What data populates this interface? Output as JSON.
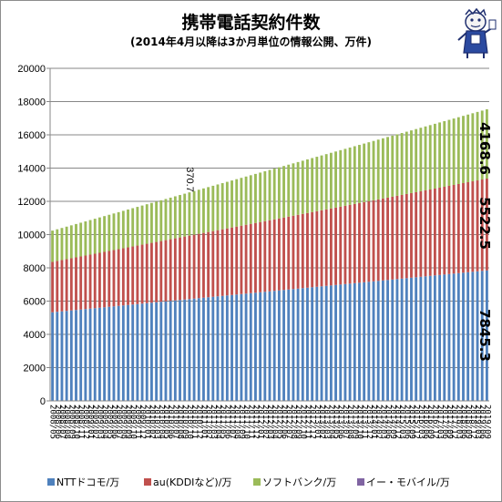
{
  "colors": {
    "docomo": "#4f81bd",
    "au": "#c0504d",
    "softbank": "#9bbb59",
    "emobile": "#8064a2",
    "grid": "#878787",
    "axis": "#878787"
  },
  "chart_data": {
    "type": "bar",
    "stacked": true,
    "title": "携帯電話契約件数",
    "subtitle": "(2014年4月以降は3か月単位の情報公開、万件)",
    "ylim": [
      0,
      20000
    ],
    "yticks": [
      0,
      2000,
      4000,
      6000,
      8000,
      10000,
      12000,
      14000,
      16000,
      18000,
      20000
    ],
    "grid": true,
    "legend_position": "bottom",
    "series": [
      {
        "name": "NTTドコモ/万",
        "color_key": "docomo",
        "start": 5330,
        "end": 7845.3
      },
      {
        "name": "au(KDDIなど)/万",
        "color_key": "au",
        "start": 3030,
        "end": 5522.5
      },
      {
        "name": "ソフトバンク/万",
        "color_key": "softbank",
        "start": 1880,
        "end": 4168.6
      },
      {
        "name": "イー・モバイル/万",
        "color_key": "emobile",
        "start": 130,
        "end": 370.7
      }
    ],
    "monthly_period": {
      "start": "2008-05",
      "end": "2014-03",
      "count": 71
    },
    "quarterly_period": {
      "start": "2014-06",
      "end": "2019-09",
      "count": 22
    },
    "emobile_last": "2014-03",
    "annotations": {
      "docomo_last": "7845.3",
      "au_last": "5522.5",
      "softbank_last": "4168.6",
      "emobile_last": "370.7"
    },
    "x_tick_labels": [
      "2008/05",
      "2008/06",
      "2008/07",
      "2008/08",
      "2008/09",
      "2008/10",
      "2008/11",
      "2008/12",
      "2009/01",
      "2009/02",
      "2009/03",
      "2009/04",
      "2009/05",
      "2009/06",
      "2009/07",
      "2009/08",
      "2009/09",
      "2009/10",
      "2009/11",
      "2009/12",
      "2010/01",
      "2010/02",
      "2010/03",
      "2010/04",
      "2010/05",
      "2010/06",
      "2010/07",
      "2010/08",
      "2010/09",
      "2010/10",
      "2010/11",
      "2010/12",
      "2011/01",
      "2011/02",
      "2011/03",
      "2011/04",
      "2011/05",
      "2011/06",
      "2011/07",
      "2011/08",
      "2011/09",
      "2011/10",
      "2011/11",
      "2011/12",
      "2012/01",
      "2012/02",
      "2012/03",
      "2012/04",
      "2012/05",
      "2012/06",
      "2012/07",
      "2012/08",
      "2012/09",
      "2012/10",
      "2012/11",
      "2012/12",
      "2013/01",
      "2013/02",
      "2013/03",
      "2013/04",
      "2013/05",
      "2013/06",
      "2013/07",
      "2013/08",
      "2013/09",
      "2013/10",
      "2013/11",
      "2013/12",
      "2014/01",
      "2014/02",
      "2014/03",
      "2014/06",
      "2014/09",
      "2014/12",
      "2015/03",
      "2015/06",
      "2015/09",
      "2015/12",
      "2016/03",
      "2016/06",
      "2016/09",
      "2016/12",
      "2017/03",
      "2017/06",
      "2017/09",
      "2017/12",
      "2018/03",
      "2018/06",
      "2018/09",
      "2018/12",
      "2019/03",
      "2019/06",
      "2019/09"
    ]
  },
  "legend": {
    "items": [
      {
        "label": "NTTドコモ/万",
        "color_key": "docomo"
      },
      {
        "label": "au(KDDIなど)/万",
        "color_key": "au"
      },
      {
        "label": "ソフトバンク/万",
        "color_key": "softbank"
      },
      {
        "label": "イー・モバイル/万",
        "color_key": "emobile"
      }
    ]
  }
}
